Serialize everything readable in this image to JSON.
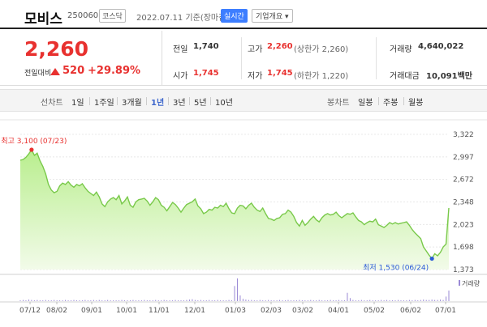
{
  "header": {
    "stock_name": "모비스",
    "stock_code": "250060",
    "market": "코스닥",
    "date": "2022.07.11  기준(장마감)",
    "realtime_label": "실시간",
    "company_label": "기업개요 ▾"
  },
  "price": {
    "current": "2,260",
    "change_label": "전일대비",
    "change_value": "520",
    "change_pct": "+29.89%"
  },
  "stats": {
    "prev_label": "전일",
    "prev_value": "1,740",
    "high_label": "고가",
    "high_value": "2,260",
    "high_note": "(상한가 2,260)",
    "volume_label": "거래량",
    "volume_value": "4,640,022",
    "open_label": "시가",
    "open_value": "1,745",
    "low_label": "저가",
    "low_value": "1,745",
    "low_note": "(하한가 1,220)",
    "amount_label": "거래대금",
    "amount_value": "10,091백만"
  },
  "tabs": {
    "line_group": "선차트",
    "line_items": [
      "1일",
      "1주일",
      "3개월",
      "1년",
      "3년",
      "5년",
      "10년"
    ],
    "active_line": "1년",
    "candle_group": "봉차트",
    "candle_items": [
      "일봉",
      "주봉",
      "월봉"
    ]
  },
  "chart_data": {
    "type": "area",
    "y_ticks": [
      "3,322",
      "2,997",
      "2,672",
      "2,348",
      "2,023",
      "1,698",
      "1,373"
    ],
    "ylim": [
      1373,
      3322
    ],
    "x_ticks": [
      "07/12",
      "08/02",
      "09/01",
      "10/01",
      "11/01",
      "12/01",
      "01/03",
      "02/03",
      "03/02",
      "04/01",
      "05/02",
      "06/02",
      "07/01"
    ],
    "high_annotation": "최고 3,100 (07/23)",
    "low_annotation": "최저 1,530 (06/24)",
    "high_value": 3100,
    "low_value": 1530,
    "volume_label": "거래량",
    "series": [
      {
        "values": [
          2950,
          2960,
          2990,
          3040,
          3100,
          3020,
          3050,
          2940,
          2860,
          2750,
          2600,
          2520,
          2480,
          2500,
          2580,
          2620,
          2600,
          2640,
          2590,
          2560,
          2600,
          2580,
          2610,
          2550,
          2500,
          2470,
          2440,
          2490,
          2420,
          2320,
          2280,
          2350,
          2390,
          2410,
          2380,
          2440,
          2320,
          2360,
          2420,
          2300,
          2270,
          2350,
          2380,
          2390,
          2400,
          2360,
          2300,
          2350,
          2410,
          2380,
          2300,
          2270,
          2220,
          2280,
          2340,
          2310,
          2260,
          2200,
          2260,
          2310,
          2330,
          2350,
          2390,
          2290,
          2250,
          2180,
          2200,
          2240,
          2230,
          2270,
          2260,
          2300,
          2280,
          2330,
          2250,
          2190,
          2180,
          2260,
          2300,
          2290,
          2250,
          2300,
          2330,
          2270,
          2230,
          2210,
          2260,
          2180,
          2110,
          2100,
          2080,
          2110,
          2120,
          2170,
          2180,
          2230,
          2200,
          2140,
          2050,
          2000,
          2080,
          2010,
          2050,
          2100,
          2140,
          2090,
          2060,
          2120,
          2160,
          2180,
          2160,
          2170,
          2200,
          2150,
          2120,
          2150,
          2180,
          2170,
          2190,
          2130,
          2080,
          2060,
          2020,
          2050,
          2070,
          2060,
          2100,
          2020,
          2000,
          1980,
          2010,
          2050,
          2030,
          2050,
          2030,
          2040,
          2050,
          2060,
          2010,
          1950,
          1900,
          1860,
          1820,
          1700,
          1640,
          1580,
          1530,
          1600,
          1570,
          1620,
          1700,
          1740,
          2260
        ]
      }
    ],
    "volume": [
      2,
      3,
      2,
      4,
      3,
      2,
      3,
      2,
      2,
      3,
      2,
      2,
      3,
      2,
      2,
      2,
      3,
      2,
      2,
      3,
      2,
      2,
      2,
      3,
      2,
      2,
      3,
      2,
      3,
      2,
      2,
      3,
      2,
      2,
      2,
      2,
      3,
      2,
      2,
      2,
      3,
      2,
      2,
      2,
      3,
      2,
      2,
      2,
      3,
      2,
      2,
      3,
      2,
      2,
      2,
      3,
      2,
      2,
      2,
      3,
      4,
      5,
      3,
      2,
      3,
      2,
      2,
      3,
      2,
      2,
      3,
      2,
      2,
      2,
      3,
      2,
      40,
      60,
      15,
      6,
      4,
      3,
      3,
      2,
      2,
      3,
      2,
      2,
      3,
      2,
      2,
      2,
      3,
      2,
      2,
      3,
      2,
      2,
      2,
      3,
      2,
      2,
      2,
      3,
      2,
      2,
      3,
      2,
      2,
      2,
      3,
      2,
      2,
      3,
      2,
      2,
      22,
      8,
      3,
      2,
      2,
      3,
      2,
      2,
      3,
      2,
      2,
      2,
      3,
      2,
      3,
      2,
      2,
      2,
      3,
      2,
      2,
      2,
      3,
      2,
      3,
      2,
      3,
      4,
      3,
      3,
      4,
      3,
      3,
      4,
      3,
      12,
      28
    ]
  }
}
